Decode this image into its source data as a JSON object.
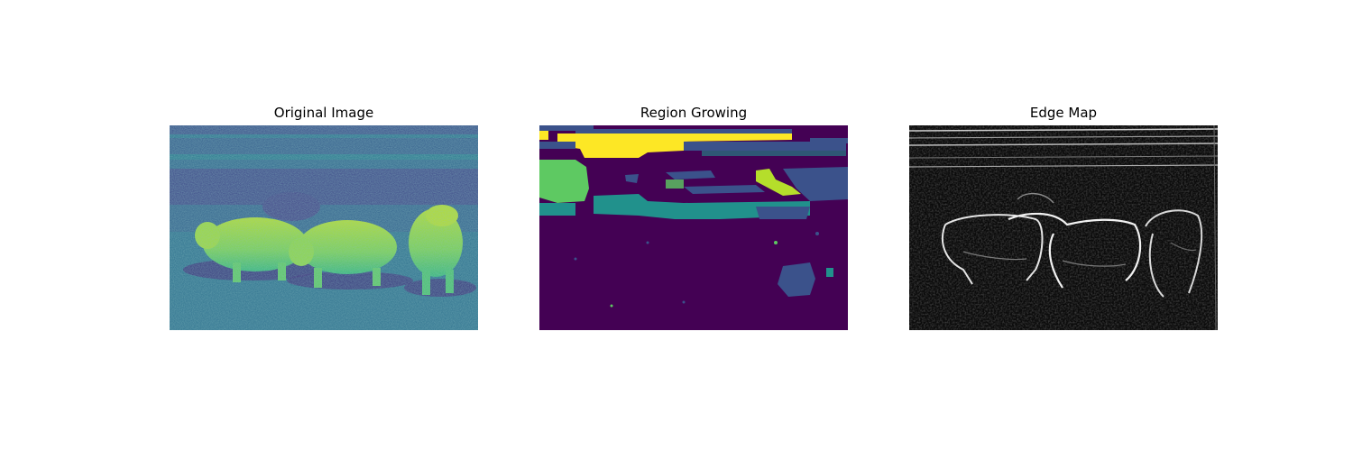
{
  "panels": [
    {
      "title": "Original Image",
      "colormap": "viridis",
      "colors": [
        "#440154",
        "#3b528b",
        "#21918c",
        "#5ec962",
        "#fde725"
      ]
    },
    {
      "title": "Region Growing",
      "colormap": "viridis",
      "colors": [
        "#440154",
        "#3b528b",
        "#21918c",
        "#5ec962",
        "#fde725"
      ]
    },
    {
      "title": "Edge Map",
      "colormap": "gray",
      "colors": [
        "#000000",
        "#ffffff"
      ]
    }
  ]
}
